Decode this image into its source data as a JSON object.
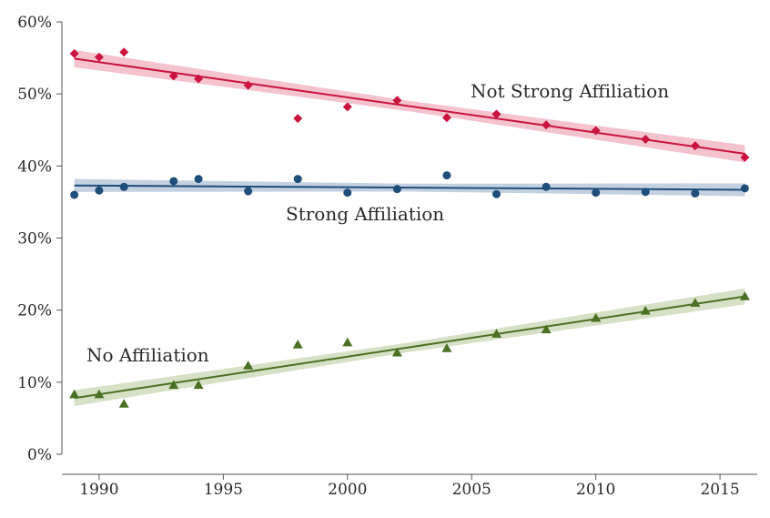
{
  "chart_data": {
    "type": "scatter",
    "title": "",
    "xlabel": "",
    "ylabel": "",
    "xlim": [
      1988.5,
      2016.5
    ],
    "ylim": [
      0,
      60
    ],
    "x_ticks": [
      1990,
      1995,
      2000,
      2005,
      2010,
      2015
    ],
    "x_tick_labels": [
      "1990",
      "1995",
      "2000",
      "2005",
      "2010",
      "2015"
    ],
    "y_ticks": [
      0,
      10,
      20,
      30,
      40,
      50,
      60
    ],
    "y_tick_labels": [
      "0%",
      "10%",
      "20%",
      "30%",
      "40%",
      "50%",
      "60%"
    ],
    "grid": false,
    "legend": "none",
    "series": [
      {
        "name": "Not Strong Affiliation",
        "marker": "diamond",
        "color": "#c8143e",
        "band_color": "#f2b8c6",
        "x": [
          1989,
          1990,
          1991,
          1993,
          1994,
          1996,
          1998,
          2000,
          2002,
          2004,
          2006,
          2008,
          2010,
          2012,
          2014,
          2016
        ],
        "y": [
          55.6,
          55.1,
          55.8,
          52.5,
          52.1,
          51.2,
          46.6,
          48.2,
          49.1,
          46.7,
          47.2,
          45.7,
          44.9,
          43.7,
          42.8,
          41.2
        ],
        "trend": [
          54.9,
          41.7
        ],
        "band_width": 1.2
      },
      {
        "name": "Strong Affiliation",
        "marker": "circle",
        "color": "#1f4e79",
        "band_color": "#b9c9dc",
        "x": [
          1989,
          1990,
          1991,
          1993,
          1994,
          1996,
          1998,
          2000,
          2002,
          2004,
          2006,
          2008,
          2010,
          2012,
          2014,
          2016
        ],
        "y": [
          36.0,
          36.6,
          37.1,
          37.9,
          38.2,
          36.5,
          38.2,
          36.3,
          36.8,
          38.7,
          36.1,
          37.1,
          36.3,
          36.4,
          36.2,
          36.9
        ],
        "trend": [
          37.3,
          36.7
        ],
        "band_width": 0.9
      },
      {
        "name": "No Affiliation",
        "marker": "triangle",
        "color": "#4a7023",
        "band_color": "#cfdcbd",
        "x": [
          1989,
          1990,
          1991,
          1993,
          1994,
          1996,
          1998,
          2000,
          2002,
          2004,
          2006,
          2008,
          2010,
          2012,
          2014,
          2016
        ],
        "y": [
          8.3,
          8.3,
          7.0,
          9.6,
          9.6,
          12.3,
          15.2,
          15.5,
          14.1,
          14.7,
          16.7,
          17.3,
          18.9,
          19.9,
          21.0,
          21.9
        ],
        "trend": [
          7.8,
          21.9
        ],
        "band_width": 1.1
      }
    ]
  }
}
